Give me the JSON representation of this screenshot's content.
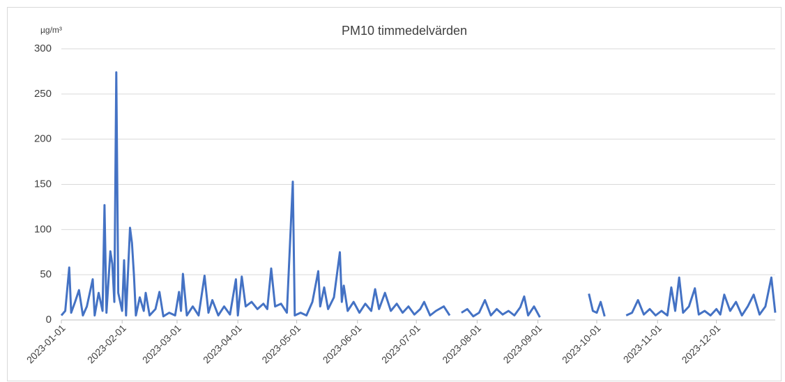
{
  "chart_data": {
    "type": "line",
    "title": "PM10 timmedelvärden",
    "y_label": "µg/m³",
    "x": [
      "2023-01-01",
      "2023-01-03",
      "2023-01-05",
      "2023-01-06",
      "2023-01-08",
      "2023-01-10",
      "2023-01-12",
      "2023-01-14",
      "2023-01-17",
      "2023-01-18",
      "2023-01-20",
      "2023-01-22",
      "2023-01-23",
      "2023-01-24",
      "2023-01-26",
      "2023-01-27",
      "2023-01-28",
      "2023-01-29",
      "2023-01-30",
      "2023-02-01",
      "2023-02-02",
      "2023-02-03",
      "2023-02-05",
      "2023-02-06",
      "2023-02-07",
      "2023-02-08",
      "2023-02-10",
      "2023-02-12",
      "2023-02-13",
      "2023-02-15",
      "2023-02-18",
      "2023-02-20",
      "2023-02-22",
      "2023-02-25",
      "2023-02-28",
      "2023-03-02",
      "2023-03-03",
      "2023-03-04",
      "2023-03-06",
      "2023-03-09",
      "2023-03-12",
      "2023-03-15",
      "2023-03-17",
      "2023-03-19",
      "2023-03-22",
      "2023-03-25",
      "2023-03-28",
      "2023-03-31",
      "2023-04-01",
      "2023-04-03",
      "2023-04-05",
      "2023-04-08",
      "2023-04-11",
      "2023-04-14",
      "2023-04-16",
      "2023-04-18",
      "2023-04-20",
      "2023-04-23",
      "2023-04-26",
      "2023-04-29",
      "2023-04-30",
      "2023-05-03",
      "2023-05-06",
      "2023-05-09",
      "2023-05-12",
      "2023-05-13",
      "2023-05-15",
      "2023-05-17",
      "2023-05-20",
      "2023-05-23",
      "2023-05-24",
      "2023-05-25",
      "2023-05-27",
      "2023-05-30",
      "2023-06-02",
      "2023-06-05",
      "2023-06-08",
      "2023-06-10",
      "2023-06-12",
      "2023-06-15",
      "2023-06-18",
      "2023-06-21",
      "2023-06-24",
      "2023-06-27",
      "2023-06-30",
      "2023-07-03",
      "2023-07-05",
      "2023-07-08",
      "2023-07-11",
      "2023-07-15",
      "2023-07-18",
      "2023-07-21",
      "2023-07-24",
      "2023-07-27",
      "2023-07-30",
      "2023-08-02",
      "2023-08-05",
      "2023-08-08",
      "2023-08-11",
      "2023-08-14",
      "2023-08-17",
      "2023-08-20",
      "2023-08-23",
      "2023-08-25",
      "2023-08-27",
      "2023-08-30",
      "2023-09-02",
      "2023-09-03",
      "2023-09-27",
      "2023-09-29",
      "2023-10-01",
      "2023-10-03",
      "2023-10-05",
      "2023-10-06",
      "2023-10-16",
      "2023-10-19",
      "2023-10-22",
      "2023-10-25",
      "2023-10-28",
      "2023-10-31",
      "2023-11-03",
      "2023-11-06",
      "2023-11-08",
      "2023-11-10",
      "2023-11-12",
      "2023-11-14",
      "2023-11-17",
      "2023-11-20",
      "2023-11-22",
      "2023-11-25",
      "2023-11-28",
      "2023-12-01",
      "2023-12-03",
      "2023-12-05",
      "2023-12-08",
      "2023-12-11",
      "2023-12-14",
      "2023-12-17",
      "2023-12-20",
      "2023-12-23",
      "2023-12-26",
      "2023-12-29",
      "2023-12-31"
    ],
    "series": [
      {
        "name": "PM10",
        "color": "#4472c4",
        "values": [
          5,
          10,
          58,
          8,
          20,
          33,
          5,
          15,
          45,
          5,
          30,
          10,
          127,
          8,
          76,
          62,
          20,
          274,
          30,
          10,
          66,
          5,
          102,
          85,
          50,
          5,
          25,
          10,
          30,
          5,
          12,
          31,
          4,
          8,
          5,
          31,
          10,
          51,
          5,
          15,
          5,
          49,
          8,
          22,
          5,
          15,
          6,
          45,
          5,
          48,
          15,
          20,
          12,
          18,
          12,
          57,
          15,
          18,
          8,
          153,
          5,
          8,
          5,
          20,
          54,
          15,
          36,
          12,
          25,
          75,
          20,
          38,
          10,
          20,
          8,
          18,
          10,
          34,
          12,
          30,
          10,
          18,
          8,
          15,
          6,
          12,
          20,
          5,
          10,
          15,
          5,
          null,
          8,
          12,
          4,
          8,
          22,
          5,
          12,
          6,
          10,
          5,
          14,
          26,
          5,
          15,
          3,
          null,
          29,
          10,
          8,
          20,
          4,
          null,
          5,
          8,
          22,
          6,
          12,
          5,
          10,
          5,
          36,
          10,
          47,
          8,
          15,
          35,
          6,
          10,
          5,
          12,
          6,
          28,
          10,
          20,
          5,
          15,
          28,
          6,
          15,
          47,
          8
        ]
      }
    ],
    "xlim": [
      "2023-01-01",
      "2023-12-31"
    ],
    "xticks": [
      "2023-01-01",
      "2023-02-01",
      "2023-03-01",
      "2023-04-01",
      "2023-05-01",
      "2023-06-01",
      "2023-07-01",
      "2023-08-01",
      "2023-09-01",
      "2023-10-01",
      "2023-11-01",
      "2023-12-01"
    ],
    "ylim": [
      0,
      300
    ],
    "yticks": [
      0,
      50,
      100,
      150,
      200,
      250,
      300
    ],
    "grid": true
  }
}
